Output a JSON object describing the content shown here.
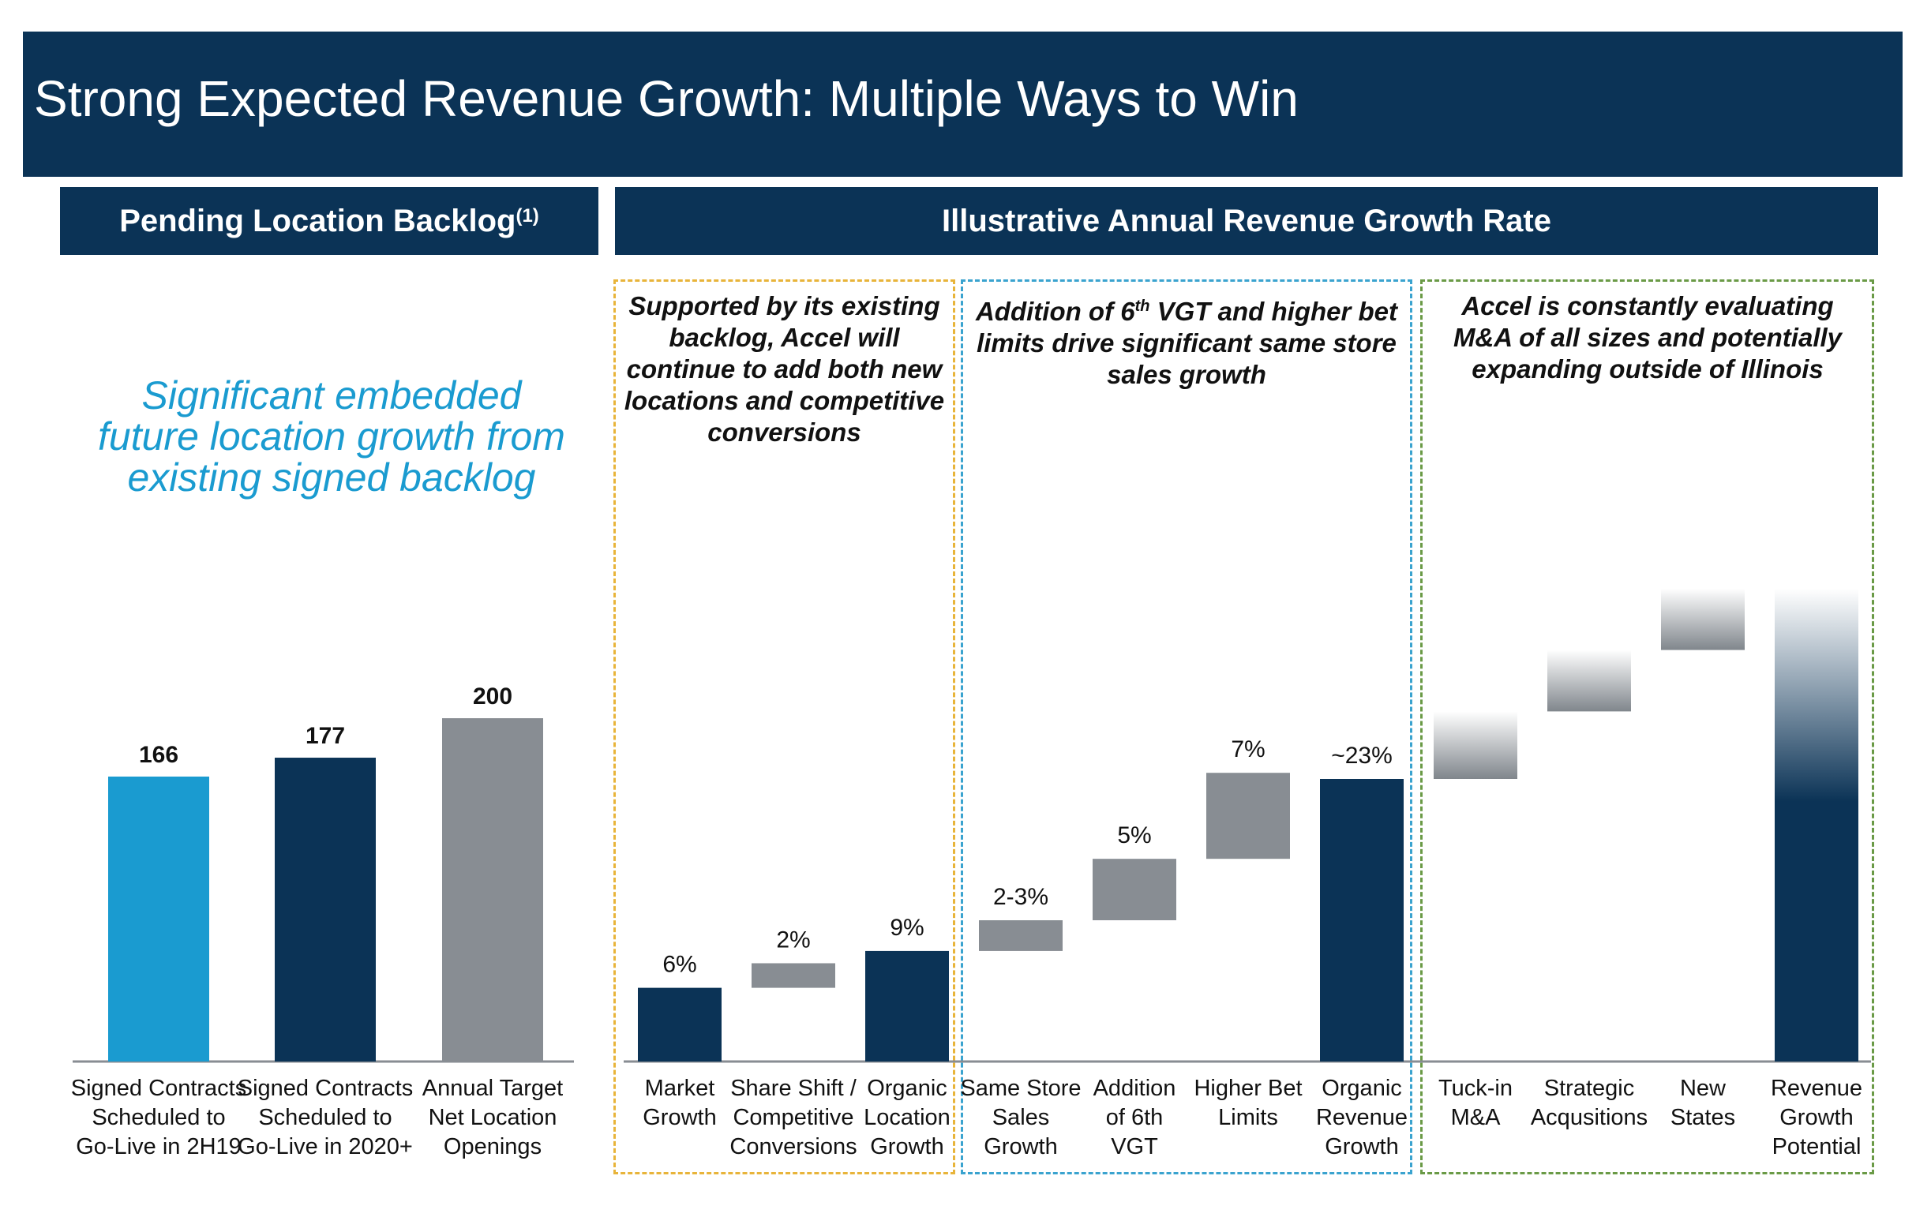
{
  "header": {
    "title": "Strong Expected Revenue Growth: Multiple Ways to Win"
  },
  "left_panel": {
    "header": "Pending Location Backlog",
    "header_sup": "(1)",
    "tagline": "Significant embedded future location growth from existing signed backlog"
  },
  "right_panel": {
    "header": "Illustrative Annual Revenue Growth Rate",
    "sections": [
      {
        "text": "Supported by its existing backlog, Accel will continue to add both new locations and competitive conversions",
        "color": "#e8b43a"
      },
      {
        "text": "Addition of 6th VGT and higher bet limits drive significant same store sales growth",
        "color": "#3aa3cf"
      },
      {
        "text": "Accel is constantly evaluating M&A of all sizes and potentially expanding outside of Illinois",
        "color": "#6a9a46"
      }
    ]
  },
  "colors": {
    "navy": "#0b3356",
    "light_blue": "#1a9bd0",
    "gray": "#888d93"
  },
  "chart_data": [
    {
      "type": "bar",
      "categories": [
        "Signed Contracts Scheduled to Go-Live in 2H19",
        "Signed Contracts Scheduled to Go-Live in 2020+",
        "Annual Target Net Location Openings"
      ],
      "category_lines": [
        [
          "Signed Contracts",
          "Scheduled to",
          "Go-Live in 2H19"
        ],
        [
          "Signed Contracts",
          "Scheduled to",
          "Go-Live in 2020+"
        ],
        [
          "Annual Target",
          "Net Location",
          "Openings"
        ]
      ],
      "values": [
        166,
        177,
        200
      ],
      "data_labels": [
        "166",
        "177",
        "200"
      ],
      "bar_colors": [
        "#1a9bd0",
        "#0b3356",
        "#888d93"
      ],
      "title": "Pending Location Backlog"
    },
    {
      "type": "bar",
      "subtype": "waterfall",
      "categories": [
        "Market Growth",
        "Share Shift / Competitive Conversions",
        "Organic Location Growth",
        "Same Store Sales Growth",
        "Addition of 6th VGT",
        "Higher Bet Limits",
        "Organic Revenue Growth",
        "Tuck-in M&A",
        "Strategic Acqusitions",
        "New States",
        "Revenue Growth Potential"
      ],
      "category_lines": [
        [
          "Market",
          "Growth"
        ],
        [
          "Share Shift /",
          "Competitive",
          "Conversions"
        ],
        [
          "Organic",
          "Location",
          "Growth"
        ],
        [
          "Same Store",
          "Sales",
          "Growth"
        ],
        [
          "Addition",
          "of 6th",
          "VGT"
        ],
        [
          "Higher Bet",
          "Limits"
        ],
        [
          "Organic",
          "Revenue",
          "Growth"
        ],
        [
          "Tuck-in",
          "M&A"
        ],
        [
          "Strategic",
          "Acqusitions"
        ],
        [
          "New",
          "States"
        ],
        [
          "Revenue",
          "Growth",
          "Potential"
        ]
      ],
      "data_labels": [
        "6%",
        "2%",
        "9%",
        "2-3%",
        "5%",
        "7%",
        "~23%",
        "",
        "",
        "",
        ""
      ],
      "bases": [
        0,
        6,
        0,
        9,
        11.5,
        16.5,
        0,
        23,
        28.5,
        33.5,
        0
      ],
      "values": [
        6,
        2,
        9,
        2.5,
        5,
        7,
        23,
        5.5,
        5,
        5,
        38.5
      ],
      "styles": [
        "navy",
        "gray",
        "navy",
        "gray",
        "gray",
        "gray",
        "navy",
        "gradient-gray",
        "gradient-gray",
        "gradient-gray",
        "gradient-navy"
      ],
      "title": "Illustrative Annual Revenue Growth Rate"
    }
  ]
}
